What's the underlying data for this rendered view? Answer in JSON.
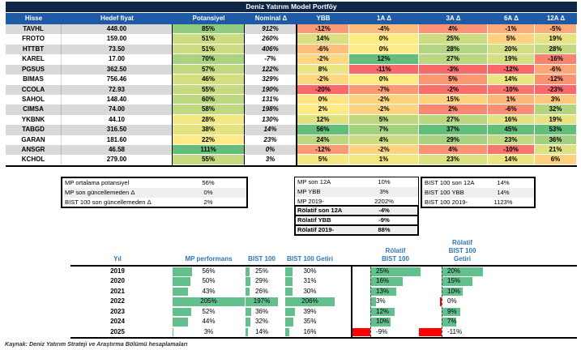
{
  "title": "Deniz Yatırım Model Portföy",
  "portfolio_table": {
    "headers": [
      "Hisse",
      "Hedef fiyat",
      "Potansiyel",
      "Nominal Δ",
      "YBB",
      "1A Δ",
      "3A Δ",
      "6A Δ",
      "12A Δ"
    ],
    "rows": [
      {
        "hisse": "TAVHL",
        "hedef_fiyat": "448.00",
        "potansiyel": 85,
        "nominal": "912%",
        "ybb": -12,
        "d1a": -4,
        "d3a": 4,
        "d6a": -1,
        "d12a": -5
      },
      {
        "hisse": "FROTO",
        "hedef_fiyat": "159.00",
        "potansiyel": 51,
        "nominal": "260%",
        "ybb": 14,
        "d1a": 0,
        "d3a": 25,
        "d6a": 5,
        "d12a": 19
      },
      {
        "hisse": "HTTBT",
        "hedef_fiyat": "73.50",
        "potansiyel": 51,
        "nominal": "406%",
        "ybb": -6,
        "d1a": 0,
        "d3a": 28,
        "d6a": 20,
        "d12a": 28
      },
      {
        "hisse": "KAREL",
        "hedef_fiyat": "17.00",
        "potansiyel": 70,
        "nominal": "-7%",
        "ybb": -2,
        "d1a": 12,
        "d3a": 27,
        "d6a": 19,
        "d12a": -16
      },
      {
        "hisse": "PGSUS",
        "hedef_fiyat": "362.50",
        "potansiyel": 57,
        "nominal": "122%",
        "ybb": 8,
        "d1a": -11,
        "d3a": -3,
        "d6a": -12,
        "d12a": -6
      },
      {
        "hisse": "BIMAS",
        "hedef_fiyat": "756.46",
        "potansiyel": 46,
        "nominal": "329%",
        "ybb": -2,
        "d1a": 0,
        "d3a": 5,
        "d6a": 14,
        "d12a": -12
      },
      {
        "hisse": "CCOLA",
        "hedef_fiyat": "72.93",
        "potansiyel": 55,
        "nominal": "190%",
        "ybb": -20,
        "d1a": -7,
        "d3a": -2,
        "d6a": -10,
        "d12a": -23
      },
      {
        "hisse": "SAHOL",
        "hedef_fiyat": "148.40",
        "potansiyel": 60,
        "nominal": "131%",
        "ybb": 0,
        "d1a": -2,
        "d3a": 15,
        "d6a": 1,
        "d12a": 3
      },
      {
        "hisse": "CIMSA",
        "hedef_fiyat": "74.00",
        "potansiyel": 58,
        "nominal": "198%",
        "ybb": 2,
        "d1a": -2,
        "d3a": 2,
        "d6a": -6,
        "d12a": 32
      },
      {
        "hisse": "YKBNK",
        "hedef_fiyat": "44.10",
        "potansiyel": 28,
        "nominal": "130%",
        "ybb": 12,
        "d1a": 5,
        "d3a": 27,
        "d6a": 16,
        "d12a": 19
      },
      {
        "hisse": "TABGD",
        "hedef_fiyat": "316.50",
        "potansiyel": 38,
        "nominal": "14%",
        "ybb": 56,
        "d1a": 7,
        "d3a": 37,
        "d6a": 45,
        "d12a": 53
      },
      {
        "hisse": "GARAN",
        "hedef_fiyat": "181.60",
        "potansiyel": 22,
        "nominal": "23%",
        "ybb": 24,
        "d1a": 4,
        "d3a": 29,
        "d6a": 23,
        "d12a": 36
      },
      {
        "hisse": "ANSGR",
        "hedef_fiyat": "46.58",
        "potansiyel": 111,
        "nominal": "0%",
        "ybb": -12,
        "d1a": -2,
        "d3a": 4,
        "d6a": -10,
        "d12a": 21
      },
      {
        "hisse": "KCHOL",
        "hedef_fiyat": "279.00",
        "potansiyel": 55,
        "nominal": "3%",
        "ybb": 5,
        "d1a": 1,
        "d3a": 23,
        "d6a": 14,
        "d12a": 6
      }
    ]
  },
  "summary_potential": {
    "rows": [
      {
        "label": "MP ortalama potansiyel",
        "value": "56%"
      },
      {
        "label": "MP son güncellemeden Δ",
        "value": "0%"
      },
      {
        "label": "BIST 100 son güncellemeden Δ",
        "value": "2%"
      }
    ]
  },
  "summary_mp": {
    "rows": [
      {
        "label": "MP son 12A",
        "value": "10%",
        "bold": false
      },
      {
        "label": "MP YBB",
        "value": "3%",
        "bold": false
      },
      {
        "label": "MP 2019-",
        "value": "2202%",
        "bold": false
      },
      {
        "label": "Rölatif son 12A",
        "value": "-4%",
        "bold": true
      },
      {
        "label": "Rölatif YBB",
        "value": "-9%",
        "bold": true
      },
      {
        "label": "Rölatif 2019-",
        "value": "88%",
        "bold": true
      }
    ]
  },
  "summary_bist": {
    "rows": [
      {
        "label": "BIST 100 son 12A",
        "value": "14%"
      },
      {
        "label": "BIST 100 YBB",
        "value": "14%"
      },
      {
        "label": "BIST 100 2019-",
        "value": "1123%"
      }
    ]
  },
  "performance_table": {
    "headers": {
      "year": "Yıl",
      "mp": "MP performans",
      "bist": "BIST 100",
      "bist_getiri": "BIST 100 Getiri",
      "rel_bist": "Rölatif\nBIST 100",
      "rel_getiri": "Rölatif\nBIST 100 Getiri"
    },
    "rows": [
      {
        "year": "2019",
        "mp": 56,
        "bist": 25,
        "bist_getiri": 30,
        "rel_bist": 25,
        "rel_getiri": 20
      },
      {
        "year": "2020",
        "mp": 50,
        "bist": 29,
        "bist_getiri": 31,
        "rel_bist": 16,
        "rel_getiri": 15
      },
      {
        "year": "2021",
        "mp": 43,
        "bist": 26,
        "bist_getiri": 30,
        "rel_bist": 13,
        "rel_getiri": 10
      },
      {
        "year": "2022",
        "mp": 205,
        "bist": 197,
        "bist_getiri": 206,
        "rel_bist": 3,
        "rel_getiri": 0
      },
      {
        "year": "2023",
        "mp": 52,
        "bist": 36,
        "bist_getiri": 39,
        "rel_bist": 12,
        "rel_getiri": 9
      },
      {
        "year": "2024",
        "mp": 44,
        "bist": 32,
        "bist_getiri": 35,
        "rel_bist": 10,
        "rel_getiri": 7
      },
      {
        "year": "2025",
        "mp": 3,
        "bist": 14,
        "bist_getiri": 16,
        "rel_bist": -9,
        "rel_getiri": -11
      }
    ],
    "bar_max": {
      "mp": 205,
      "bist": 197,
      "bist_getiri": 206,
      "rel_bist": 25,
      "rel_getiri": 20
    }
  },
  "source_note": "Kaynak: Deniz Yatırım Strateji ve Araştırma Bölümü hesaplamaları",
  "colors": {
    "title_bg": "#0E2746",
    "header_bg": "#1E5AA5",
    "row_stripe": "#D9D9D9",
    "heat_red": "#F8696B",
    "heat_yellow": "#FFEB84",
    "heat_green": "#63BE7B",
    "bar_green": "#63C08C",
    "bar_red": "#FF0000",
    "table_header_blue": "#2E75B6"
  }
}
